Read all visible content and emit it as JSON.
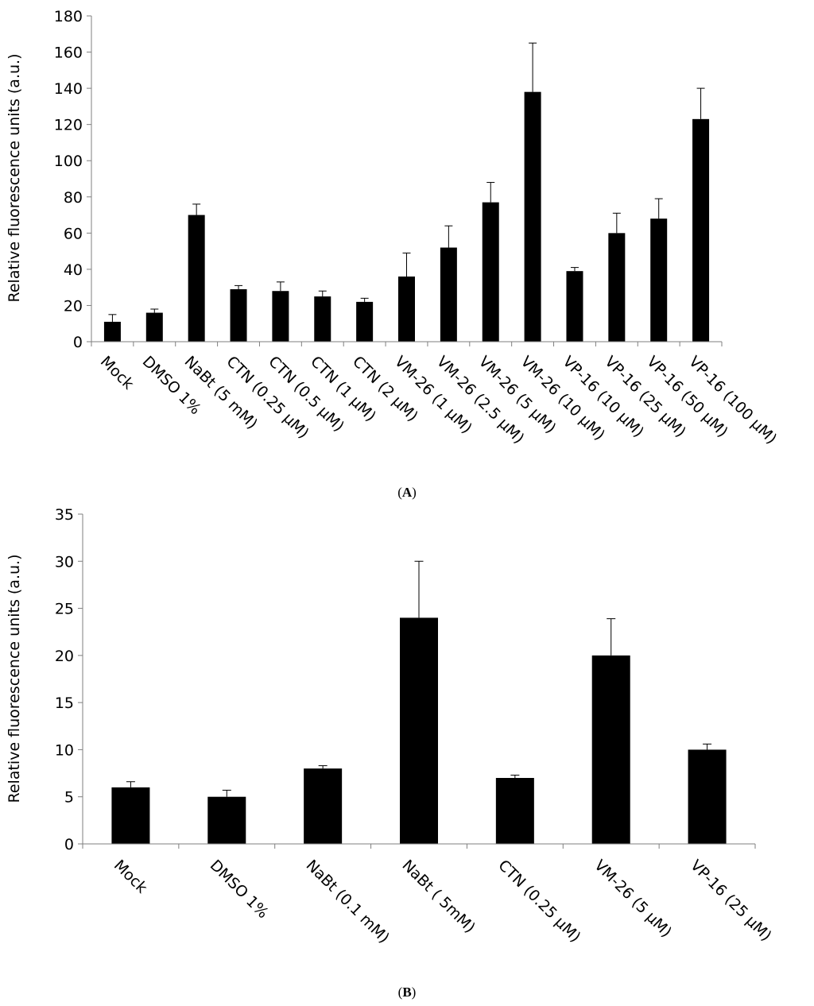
{
  "chart_data": [
    {
      "panel": "A",
      "type": "bar",
      "ylabel": "Relative fluorescence units (a.u.)",
      "ylim": [
        0,
        180
      ],
      "yticks": [
        0,
        20,
        40,
        60,
        80,
        100,
        120,
        140,
        160,
        180
      ],
      "bar_color": "#000000",
      "categories": [
        "Mock",
        "DMSO 1%",
        "NaBt (5 mM)",
        "CTN (0.25 μM)",
        "CTN (0.5 μM)",
        "CTN (1 μM)",
        "CTN (2 μM)",
        "VM-26 (1 μM)",
        "VM-26 (2.5 μM)",
        "VM-26 (5 μM)",
        "VM-26 (10 μM)",
        "VP-16 (10 μM)",
        "VP-16 (25 μM)",
        "VP-16 (50 μM)",
        "VP-16 (100 μM)"
      ],
      "values": [
        11,
        16,
        70,
        29,
        28,
        25,
        22,
        36,
        52,
        77,
        138,
        39,
        60,
        68,
        123
      ],
      "errors": [
        4,
        2,
        6,
        2,
        5,
        3,
        2,
        13,
        12,
        11,
        27,
        2,
        11,
        11,
        17
      ]
    },
    {
      "panel": "B",
      "type": "bar",
      "ylabel": "Relative fluorescence units (a.u.)",
      "ylim": [
        0,
        35
      ],
      "yticks": [
        0,
        5,
        10,
        15,
        20,
        25,
        30,
        35
      ],
      "bar_color": "#000000",
      "categories": [
        "Mock",
        "DMSO 1%",
        "NaBt (0.1 mM)",
        "NaBt ( 5mM)",
        "CTN (0.25 μM)",
        "VM-26 (5 μM)",
        "VP-16 (25 μM)"
      ],
      "values": [
        6,
        5,
        8,
        24,
        7,
        20,
        10
      ],
      "errors": [
        0.6,
        0.7,
        0.3,
        6,
        0.3,
        3.9,
        0.6
      ]
    }
  ]
}
